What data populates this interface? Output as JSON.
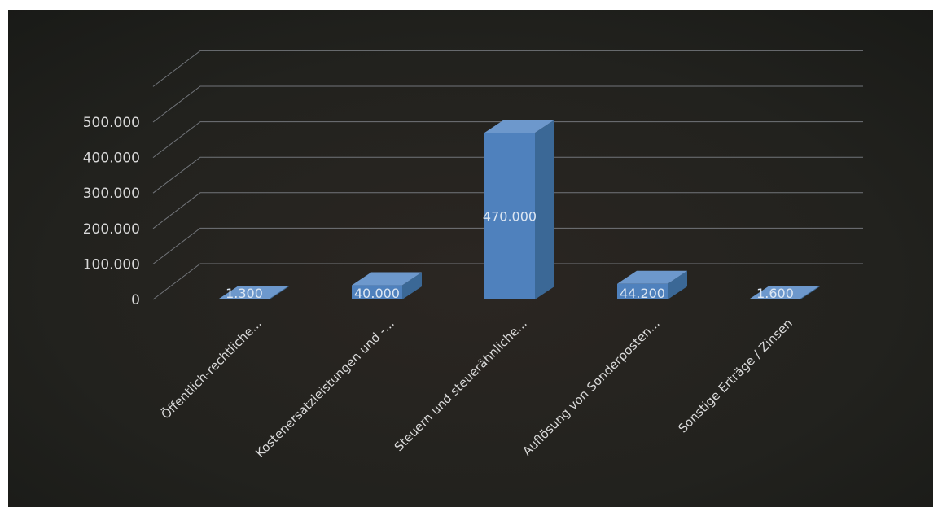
{
  "chart_data": {
    "type": "bar",
    "style": "3d-column",
    "categories": [
      "Öffentlich-rechtliche...",
      "Kostenersatzleistungen und -...",
      "Steuern und steuerähnliche...",
      "Auflösung von Sonderposten...",
      "Sonstige Erträge / Zinsen"
    ],
    "values": [
      1300,
      40000,
      470000,
      44200,
      1600
    ],
    "data_labels": [
      "1.300",
      "40.000",
      "470.000",
      "44.200",
      "1.600"
    ],
    "y_ticks": [
      "0",
      "100.000",
      "200.000",
      "300.000",
      "400.000",
      "500.000"
    ],
    "ylim": [
      0,
      500000
    ],
    "grid": true,
    "legend": "none",
    "title": "",
    "xlabel": "",
    "ylabel": "",
    "colors": {
      "bar_front": "#4f81bd",
      "bar_side": "#3b6896",
      "bar_top": "#6d98cc",
      "background": "#1f1f1b",
      "text": "#d9d9d9"
    }
  }
}
